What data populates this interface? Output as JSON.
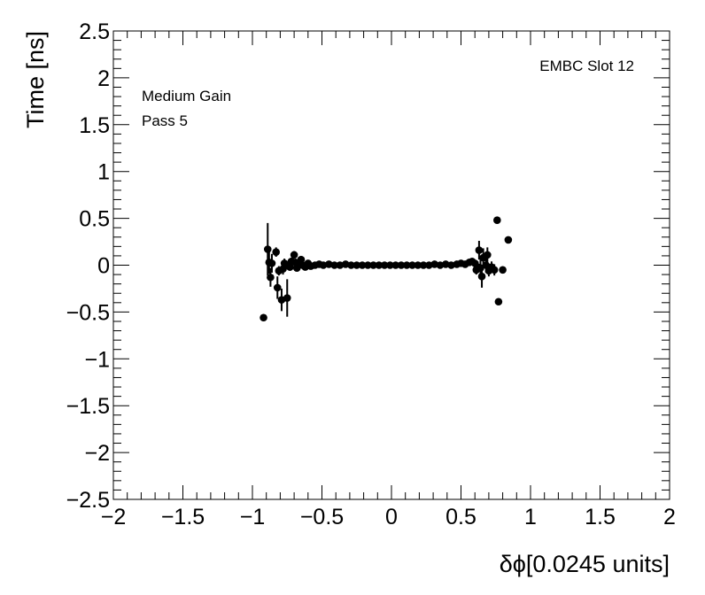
{
  "chart_data": {
    "type": "scatter",
    "title": "",
    "xlabel": "δϕ[0.0245 units]",
    "ylabel": "Time [ns]",
    "xlim": [
      -2,
      2
    ],
    "ylim": [
      -2.5,
      2.5
    ],
    "x_ticks": [
      "−2",
      "−1.5",
      "−1",
      "−0.5",
      "0",
      "0.5",
      "1",
      "1.5",
      "2"
    ],
    "y_ticks": [
      "2.5",
      "2",
      "1.5",
      "1",
      "0.5",
      "0",
      "−0.5",
      "−1",
      "−1.5",
      "−2",
      "−2.5"
    ],
    "grid": false,
    "legend": "none",
    "marker_color": "#000000",
    "annotations": {
      "top_right": "EMBC Slot 12",
      "line1": "Medium Gain",
      "line2": "Pass 5"
    },
    "series": [
      {
        "points": [
          {
            "x": -0.92,
            "y": -0.56,
            "err": 0.0
          },
          {
            "x": -0.89,
            "y": 0.17,
            "err": 0.28
          },
          {
            "x": -0.88,
            "y": 0.03,
            "err": 0.12
          },
          {
            "x": -0.87,
            "y": -0.13,
            "err": 0.1
          },
          {
            "x": -0.86,
            "y": 0.02,
            "err": 0.1
          },
          {
            "x": -0.83,
            "y": 0.14,
            "err": 0.05
          },
          {
            "x": -0.82,
            "y": -0.24,
            "err": 0.12
          },
          {
            "x": -0.81,
            "y": -0.06,
            "err": 0.05
          },
          {
            "x": -0.79,
            "y": -0.37,
            "err": 0.12
          },
          {
            "x": -0.78,
            "y": -0.04,
            "err": 0.06
          },
          {
            "x": -0.77,
            "y": 0.02,
            "err": 0.05
          },
          {
            "x": -0.75,
            "y": -0.35,
            "err": 0.2
          },
          {
            "x": -0.74,
            "y": 0.0,
            "err": 0.05
          },
          {
            "x": -0.73,
            "y": -0.02,
            "err": 0.04
          },
          {
            "x": -0.72,
            "y": 0.04,
            "err": 0.04
          },
          {
            "x": -0.7,
            "y": 0.11,
            "err": 0.04
          },
          {
            "x": -0.69,
            "y": 0.03,
            "err": 0.03
          },
          {
            "x": -0.68,
            "y": -0.03,
            "err": 0.03
          },
          {
            "x": -0.67,
            "y": 0.0,
            "err": 0.02
          },
          {
            "x": -0.65,
            "y": 0.06,
            "err": 0.03
          },
          {
            "x": -0.64,
            "y": 0.0,
            "err": 0.02
          },
          {
            "x": -0.62,
            "y": -0.02,
            "err": 0.02
          },
          {
            "x": -0.6,
            "y": 0.02,
            "err": 0.02
          },
          {
            "x": -0.58,
            "y": -0.01,
            "err": 0.02
          },
          {
            "x": -0.55,
            "y": 0.0,
            "err": 0.01
          },
          {
            "x": -0.52,
            "y": 0.01,
            "err": 0.01
          },
          {
            "x": -0.49,
            "y": 0.0,
            "err": 0.01
          },
          {
            "x": -0.45,
            "y": 0.01,
            "err": 0.01
          },
          {
            "x": -0.41,
            "y": 0.0,
            "err": 0.01
          },
          {
            "x": -0.37,
            "y": 0.0,
            "err": 0.01
          },
          {
            "x": -0.33,
            "y": 0.01,
            "err": 0.01
          },
          {
            "x": -0.29,
            "y": 0.0,
            "err": 0.01
          },
          {
            "x": -0.25,
            "y": 0.0,
            "err": 0.01
          },
          {
            "x": -0.21,
            "y": 0.0,
            "err": 0.01
          },
          {
            "x": -0.17,
            "y": 0.0,
            "err": 0.01
          },
          {
            "x": -0.13,
            "y": 0.0,
            "err": 0.01
          },
          {
            "x": -0.09,
            "y": 0.0,
            "err": 0.01
          },
          {
            "x": -0.05,
            "y": 0.0,
            "err": 0.01
          },
          {
            "x": -0.01,
            "y": 0.0,
            "err": 0.01
          },
          {
            "x": 0.03,
            "y": 0.0,
            "err": 0.01
          },
          {
            "x": 0.07,
            "y": 0.0,
            "err": 0.01
          },
          {
            "x": 0.11,
            "y": 0.0,
            "err": 0.01
          },
          {
            "x": 0.15,
            "y": 0.0,
            "err": 0.01
          },
          {
            "x": 0.19,
            "y": 0.0,
            "err": 0.01
          },
          {
            "x": 0.23,
            "y": 0.0,
            "err": 0.01
          },
          {
            "x": 0.27,
            "y": 0.0,
            "err": 0.01
          },
          {
            "x": 0.31,
            "y": 0.01,
            "err": 0.01
          },
          {
            "x": 0.35,
            "y": 0.0,
            "err": 0.01
          },
          {
            "x": 0.39,
            "y": 0.01,
            "err": 0.01
          },
          {
            "x": 0.43,
            "y": 0.0,
            "err": 0.01
          },
          {
            "x": 0.47,
            "y": 0.01,
            "err": 0.01
          },
          {
            "x": 0.5,
            "y": 0.02,
            "err": 0.02
          },
          {
            "x": 0.53,
            "y": 0.01,
            "err": 0.02
          },
          {
            "x": 0.56,
            "y": 0.03,
            "err": 0.02
          },
          {
            "x": 0.58,
            "y": 0.04,
            "err": 0.02
          },
          {
            "x": 0.6,
            "y": 0.02,
            "err": 0.03
          },
          {
            "x": 0.61,
            "y": -0.05,
            "err": 0.05
          },
          {
            "x": 0.62,
            "y": -0.02,
            "err": 0.06
          },
          {
            "x": 0.63,
            "y": 0.16,
            "err": 0.1
          },
          {
            "x": 0.64,
            "y": -0.03,
            "err": 0.1
          },
          {
            "x": 0.65,
            "y": -0.12,
            "err": 0.12
          },
          {
            "x": 0.66,
            "y": 0.08,
            "err": 0.1
          },
          {
            "x": 0.68,
            "y": 0.0,
            "err": 0.08
          },
          {
            "x": 0.69,
            "y": 0.11,
            "err": 0.08
          },
          {
            "x": 0.7,
            "y": -0.06,
            "err": 0.06
          },
          {
            "x": 0.72,
            "y": -0.02,
            "err": 0.06
          },
          {
            "x": 0.74,
            "y": -0.05,
            "err": 0.06
          },
          {
            "x": 0.76,
            "y": 0.48,
            "err": 0.0
          },
          {
            "x": 0.77,
            "y": -0.39,
            "err": 0.0
          },
          {
            "x": 0.8,
            "y": -0.05,
            "err": 0.0
          },
          {
            "x": 0.84,
            "y": 0.27,
            "err": 0.0
          }
        ]
      }
    ]
  }
}
